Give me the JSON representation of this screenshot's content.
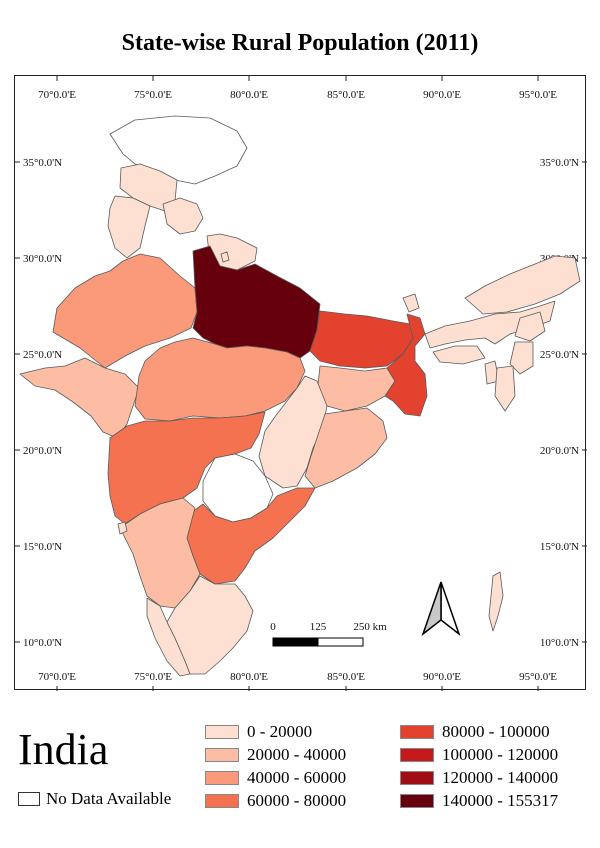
{
  "title": "State-wise Rural Population (2011)",
  "country": "India",
  "no_data_label": "No Data Available",
  "longitude_labels": [
    "70°0.0'E",
    "75°0.0'E",
    "80°0.0'E",
    "85°0.0'E",
    "90°0.0'E",
    "95°0.0'E"
  ],
  "latitude_labels": [
    "35°0.0'N",
    "30°0.0'N",
    "25°0.0'N",
    "20°0.0'N",
    "15°0.0'N",
    "10°0.0'N"
  ],
  "scale_bar": {
    "labels": [
      "0",
      "125",
      "250 km"
    ]
  },
  "legend": [
    {
      "label": "0 - 20000",
      "color": "#fde0d2"
    },
    {
      "label": "20000 - 40000",
      "color": "#fcbda4"
    },
    {
      "label": "40000 - 60000",
      "color": "#fb9a7a"
    },
    {
      "label": "60000 - 80000",
      "color": "#f4724f"
    },
    {
      "label": "80000 - 100000",
      "color": "#e3422e"
    },
    {
      "label": "100000 - 120000",
      "color": "#c6191c"
    },
    {
      "label": "120000 - 140000",
      "color": "#a00d14"
    },
    {
      "label": "140000 - 155317",
      "color": "#67000d"
    }
  ],
  "no_data_color": "#ffffff"
}
